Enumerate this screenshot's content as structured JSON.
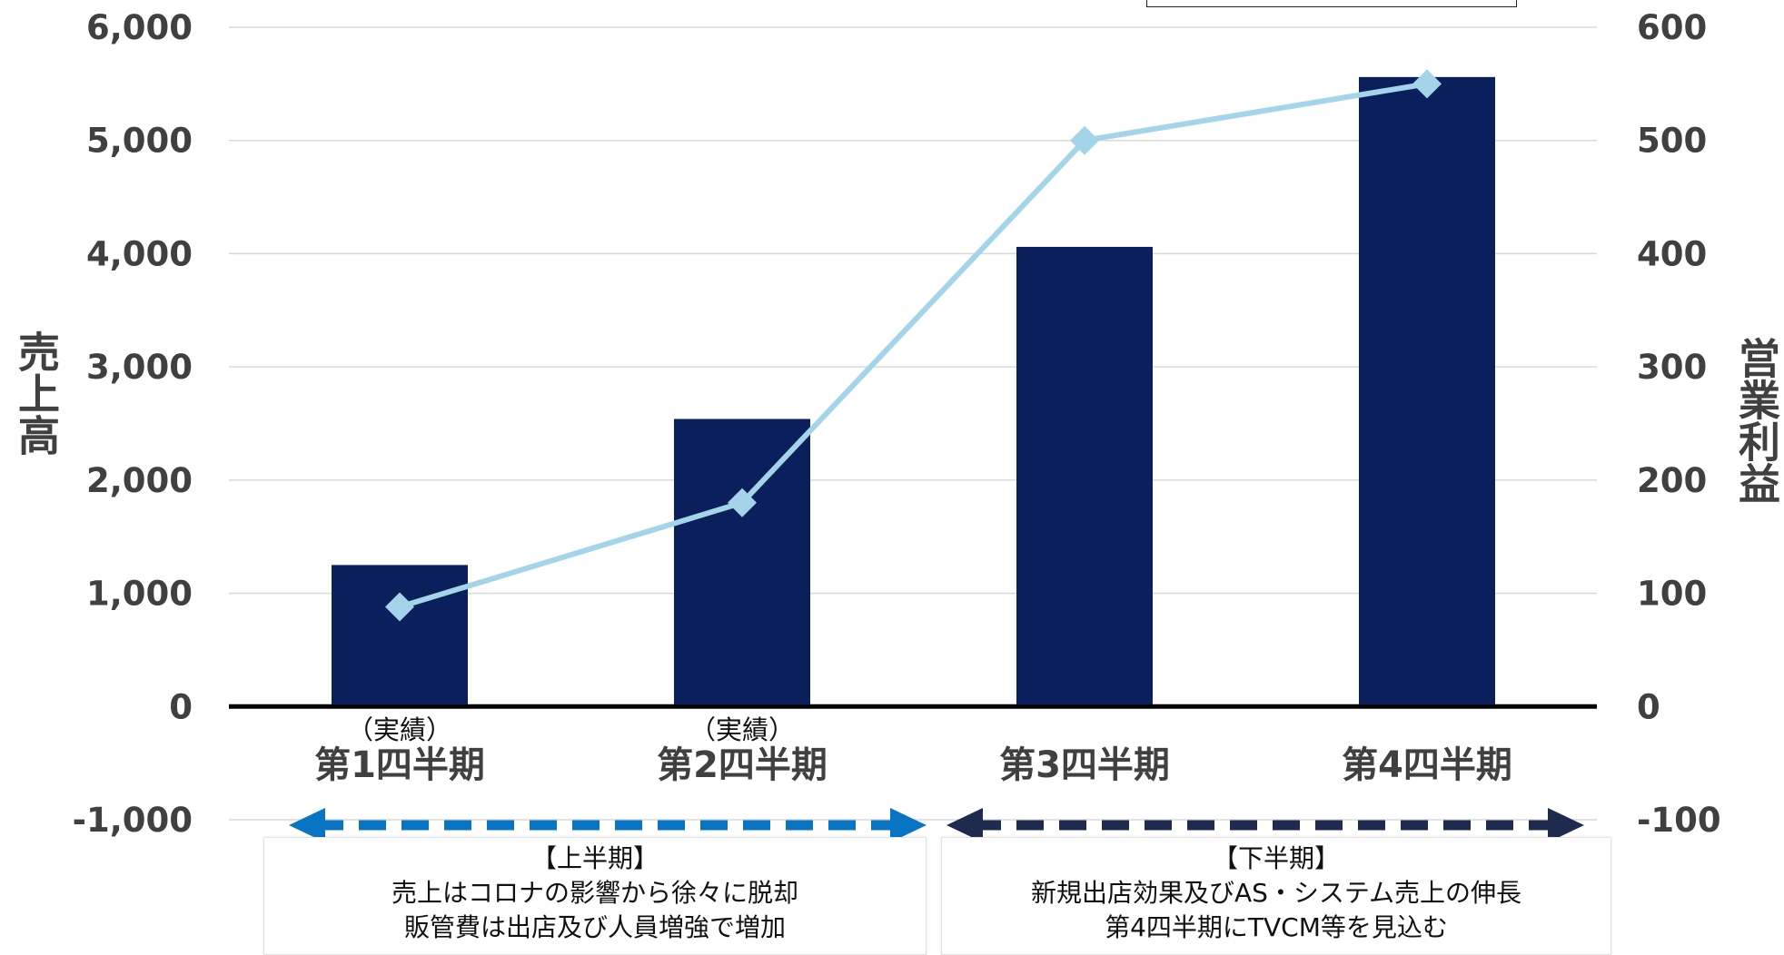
{
  "chart_data": {
    "type": "bar",
    "categories": [
      "第1四半期",
      "第2四半期",
      "第3四半期",
      "第4四半期"
    ],
    "category_notes": [
      "（実績）",
      "（実績）",
      "",
      ""
    ],
    "series": [
      {
        "name": "売上高",
        "type": "bar",
        "axis": "left",
        "values": [
          1250,
          2540,
          4060,
          5560
        ],
        "color": "#0b1f5c"
      },
      {
        "name": "営業利益",
        "type": "line",
        "axis": "right",
        "values": [
          88,
          180,
          500,
          550
        ],
        "color": "#a3d4ea"
      }
    ],
    "ylabel": "売上高",
    "y2label": "営業利益",
    "ylim": [
      -1000,
      6000
    ],
    "y2lim": [
      -100,
      600
    ],
    "yticks": [
      "6,000",
      "5,000",
      "4,000",
      "3,000",
      "2,000",
      "1,000",
      "0",
      "-1,000"
    ],
    "y2ticks": [
      "600",
      "500",
      "400",
      "300",
      "200",
      "100",
      "0",
      "-100"
    ],
    "grid": true,
    "periods": [
      {
        "title": "【上半期】",
        "lines": [
          "売上はコロナの影響から徐々に脱却",
          "販管費は出店及び人員増強で増加"
        ],
        "color": "#0a74c4"
      },
      {
        "title": "【下半期】",
        "lines": [
          "新規出店効果及びAS・システム売上の伸長",
          "第4四半期にTVCM等を見込む"
        ],
        "color": "#1f2a4f"
      }
    ]
  }
}
